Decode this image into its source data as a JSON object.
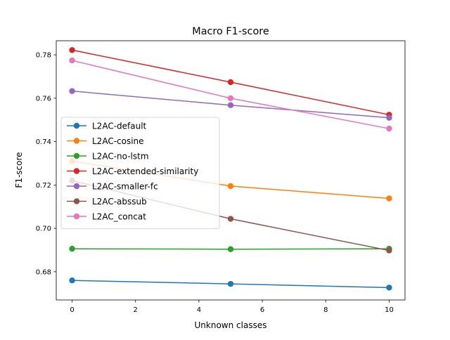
{
  "chart_data": {
    "type": "line",
    "title": "Macro F1-score",
    "xlabel": "Unknown classes",
    "ylabel": "F1-score",
    "x": [
      0,
      5,
      10
    ],
    "xlim": [
      -0.5,
      10.5
    ],
    "ylim": [
      0.667,
      0.7865
    ],
    "xticks": [
      0,
      2,
      4,
      6,
      8,
      10
    ],
    "yticks": [
      0.68,
      0.7,
      0.72,
      0.74,
      0.76,
      0.78
    ],
    "xtick_labels": [
      "0",
      "2",
      "4",
      "6",
      "8",
      "10"
    ],
    "ytick_labels": [
      "0.68",
      "0.70",
      "0.72",
      "0.74",
      "0.76",
      "0.78"
    ],
    "grid": false,
    "legend_position": "center-left",
    "series": [
      {
        "name": "L2AC-default",
        "color": "#1f77b4",
        "values": [
          0.676,
          0.6744,
          0.6727
        ]
      },
      {
        "name": "L2AC-cosine",
        "color": "#ff7f0e",
        "values": [
          0.731,
          0.7195,
          0.7138
        ]
      },
      {
        "name": "L2AC-no-lstm",
        "color": "#2ca02c",
        "values": [
          0.6906,
          0.6904,
          0.6906
        ]
      },
      {
        "name": "L2AC-extended-similarity",
        "color": "#d62728",
        "values": [
          0.7822,
          0.7674,
          0.7524
        ]
      },
      {
        "name": "L2AC-smaller-fc",
        "color": "#9467bd",
        "values": [
          0.7633,
          0.7568,
          0.751
        ]
      },
      {
        "name": "L2AC-abssub",
        "color": "#8c564b",
        "values": [
          0.722,
          0.7044,
          0.6898
        ]
      },
      {
        "name": "L2AC_concat",
        "color": "#e377c2",
        "values": [
          0.7774,
          0.76,
          0.746
        ]
      }
    ]
  }
}
